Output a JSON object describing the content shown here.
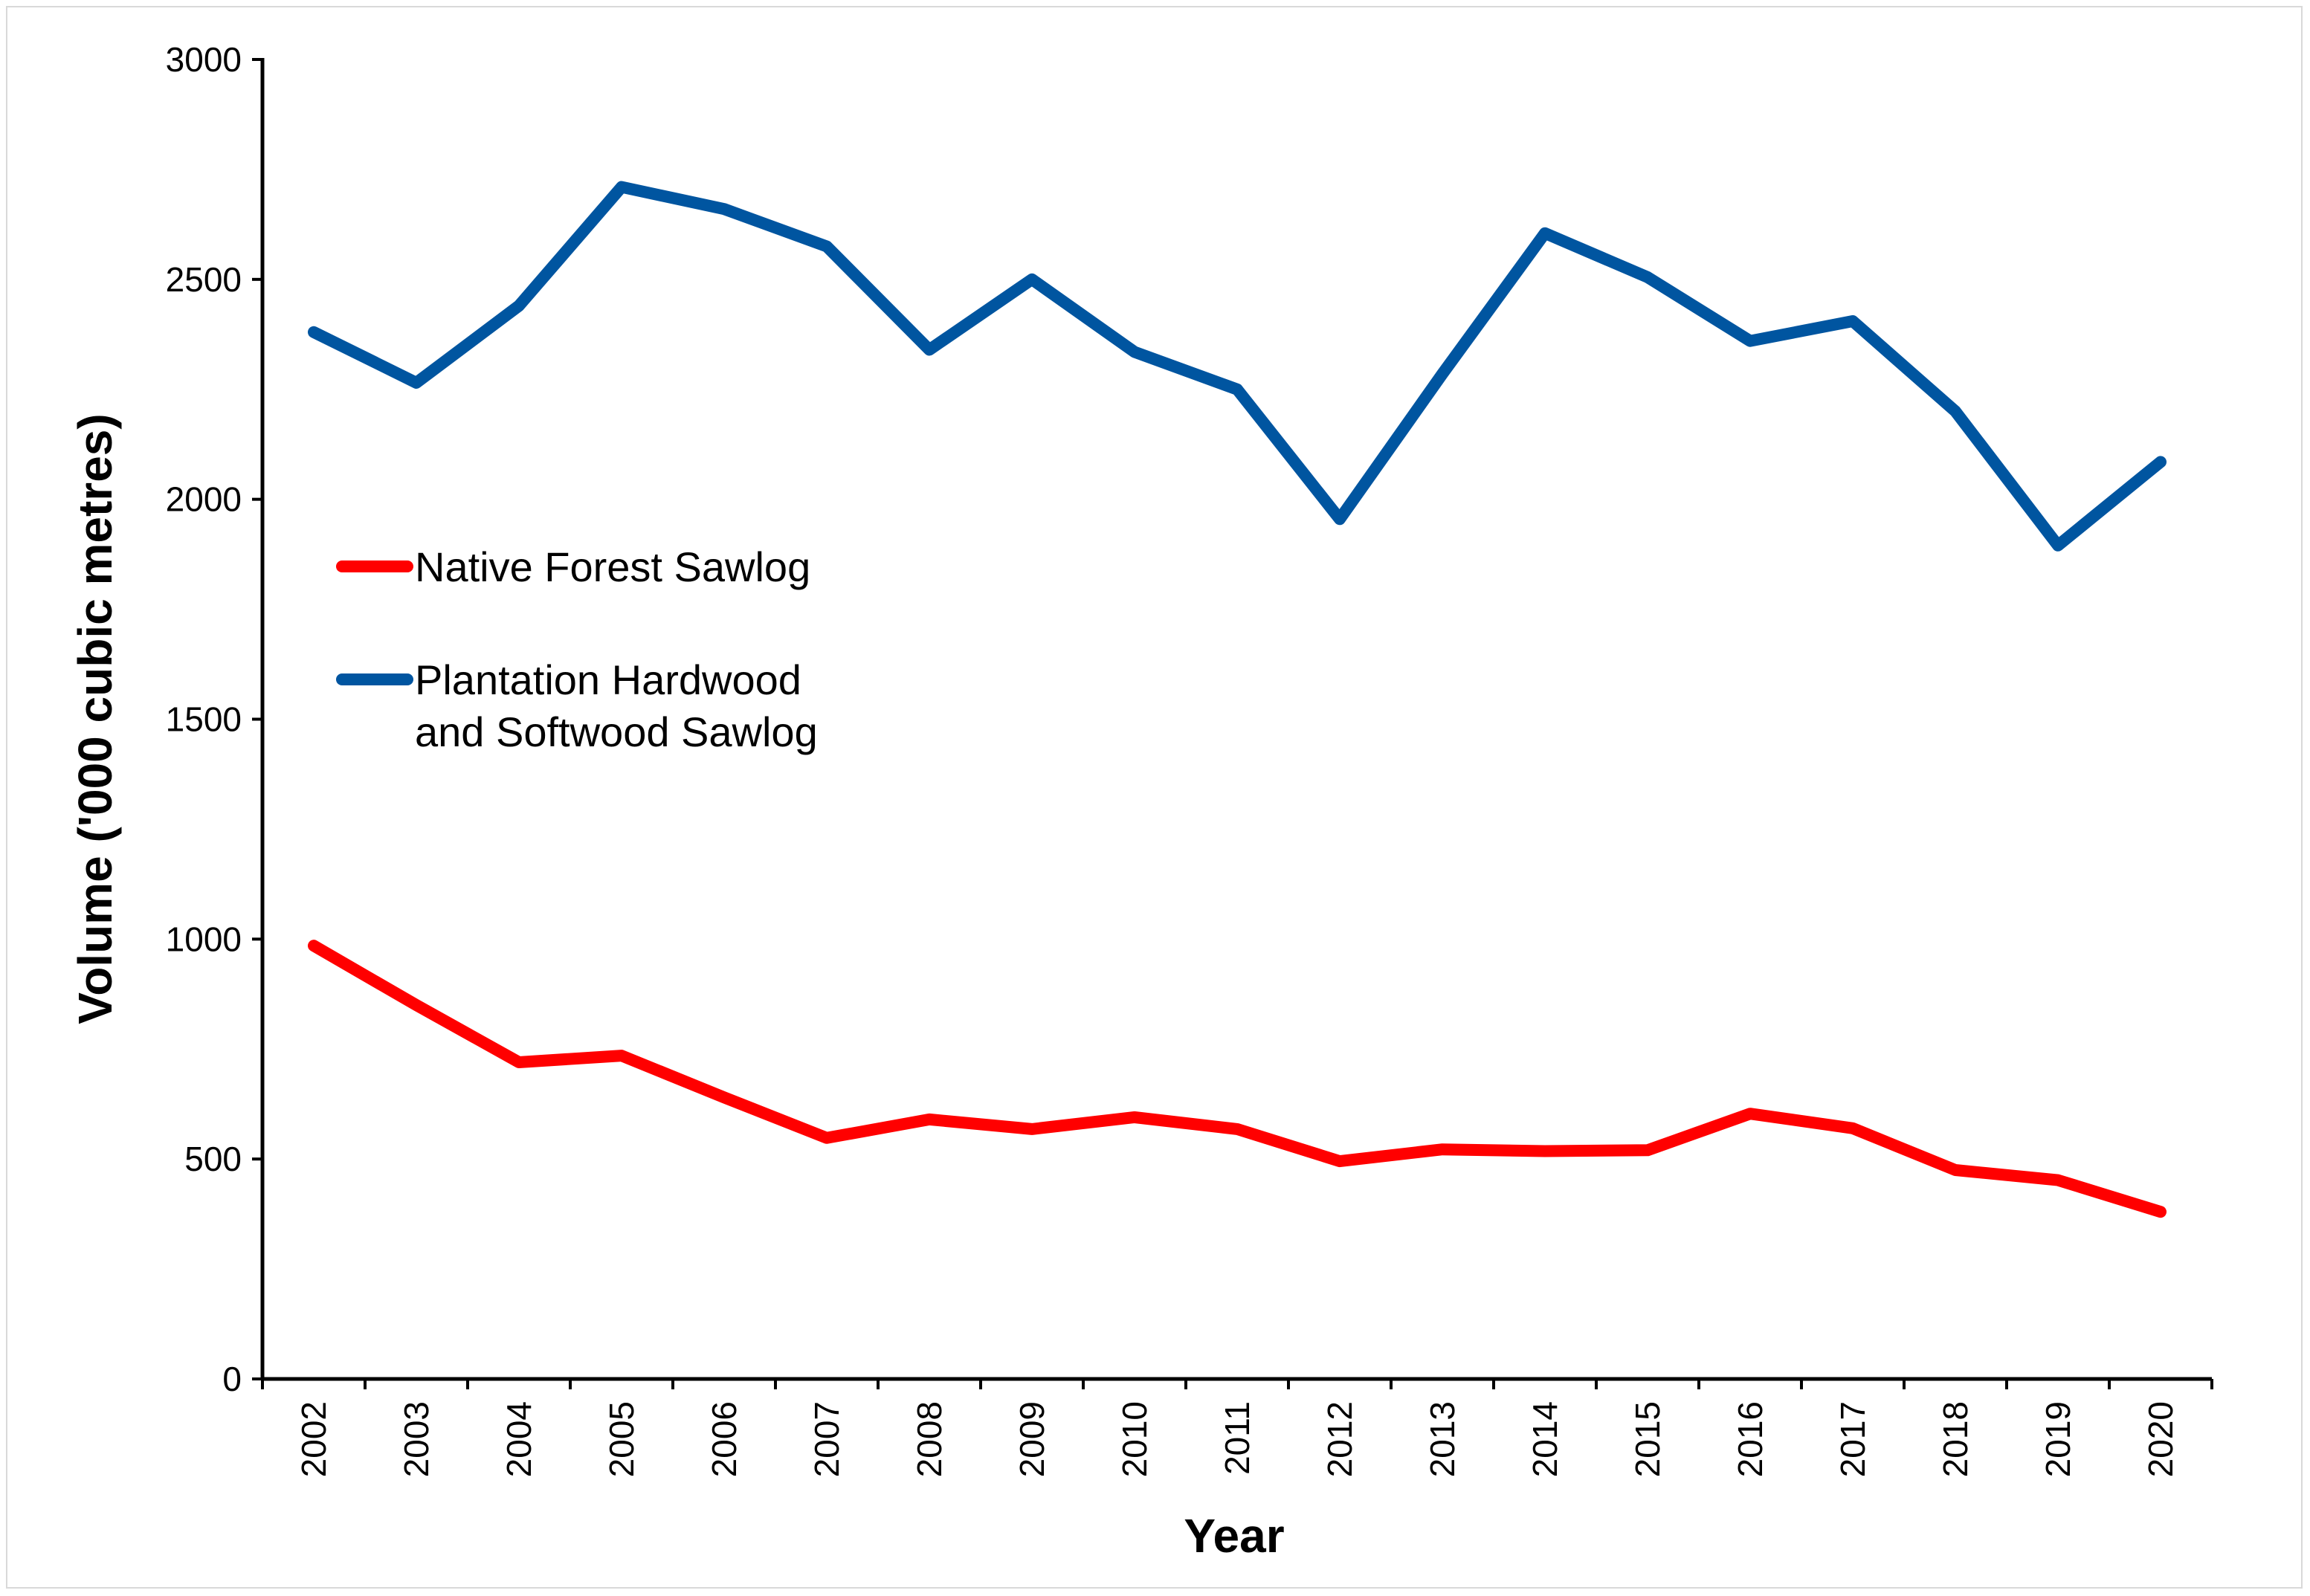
{
  "chart_data": {
    "type": "line",
    "title": "",
    "xlabel": "Year",
    "ylabel": "Volume ('000 cubic metres)",
    "ylim": [
      0,
      3000
    ],
    "yticks": [
      0,
      500,
      1000,
      1500,
      2000,
      2500,
      3000
    ],
    "categories": [
      "2002",
      "2003",
      "2004",
      "2005",
      "2006",
      "2007",
      "2008",
      "2009",
      "2010",
      "2011",
      "2012",
      "2013",
      "2014",
      "2015",
      "2016",
      "2017",
      "2018",
      "2019",
      "2020"
    ],
    "grid": false,
    "legend_position": "middle-left",
    "series": [
      {
        "name": "Native Forest Sawlog",
        "color": "#ff0000",
        "values": [
          985,
          850,
          720,
          735,
          640,
          548,
          590,
          568,
          595,
          568,
          495,
          522,
          518,
          520,
          603,
          570,
          475,
          452,
          380
        ]
      },
      {
        "name": "Plantation Hardwood and Softwood Sawlog",
        "legend_lines": [
          "Plantation Hardwood",
          "and Softwood Sawlog"
        ],
        "color": "#0055a0",
        "values": [
          2380,
          2265,
          2440,
          2710,
          2660,
          2575,
          2340,
          2500,
          2335,
          2250,
          1955,
          2285,
          2605,
          2505,
          2360,
          2405,
          2200,
          1895,
          2085
        ]
      }
    ]
  }
}
